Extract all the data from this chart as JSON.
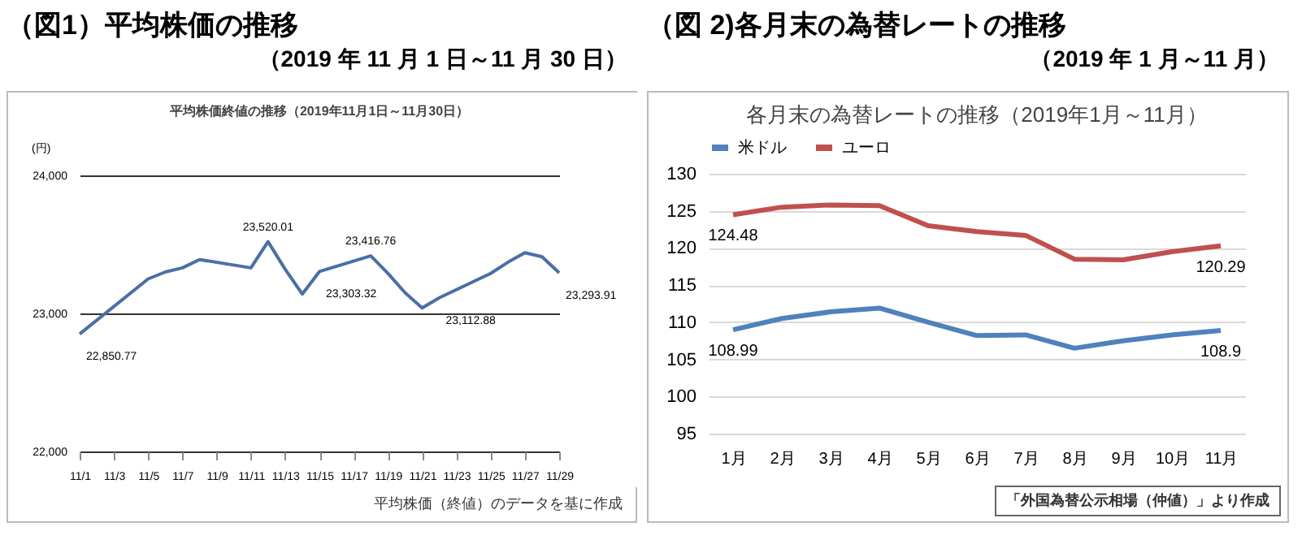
{
  "chart_data": [
    {
      "type": "line",
      "title": "（図1）平均株価の推移",
      "subtitle": "（2019 年 11 月 1 日～11 月 30 日）",
      "annotations": [
        "平均株価終値の推移（2019年11月1日～11月30日）",
        "平均株価（終値）のデータを基に作成"
      ],
      "ylabel": "(円)",
      "x": [
        "2019-11-01",
        "2019-11-05",
        "2019-11-06",
        "2019-11-07",
        "2019-11-08",
        "2019-11-11",
        "2019-11-12",
        "2019-11-13",
        "2019-11-14",
        "2019-11-15",
        "2019-11-18",
        "2019-11-19",
        "2019-11-20",
        "2019-11-21",
        "2019-11-22",
        "2019-11-25",
        "2019-11-26",
        "2019-11-27",
        "2019-11-28",
        "2019-11-29"
      ],
      "series": [
        {
          "color": "#4a6fa5",
          "values": [
            22850.77,
            23250,
            23300,
            23330,
            23390,
            23330,
            23520.01,
            23320,
            23140,
            23303.32,
            23416.76,
            23290,
            23150,
            23040,
            23112.88,
            23290,
            23370,
            23440,
            23410,
            23293.91
          ],
          "value_labels": [
            "22,850.77",
            null,
            null,
            null,
            null,
            null,
            "23,520.01",
            null,
            null,
            "23,303.32",
            "23,416.76",
            null,
            null,
            null,
            "23,112.88",
            null,
            null,
            null,
            null,
            "23,293.91"
          ]
        }
      ],
      "xlim": [
        "2019-11-01",
        "2019-11-29"
      ],
      "xticks": [
        {
          "value": "2019-11-01",
          "label": "11/1"
        },
        {
          "value": "2019-11-03",
          "label": "11/3"
        },
        {
          "value": "2019-11-05",
          "label": "11/5"
        },
        {
          "value": "2019-11-07",
          "label": "11/7"
        },
        {
          "value": "2019-11-09",
          "label": "11/9"
        },
        {
          "value": "2019-11-11",
          "label": "11/11"
        },
        {
          "value": "2019-11-13",
          "label": "11/13"
        },
        {
          "value": "2019-11-15",
          "label": "11/15"
        },
        {
          "value": "2019-11-17",
          "label": "11/17"
        },
        {
          "value": "2019-11-19",
          "label": "11/19"
        },
        {
          "value": "2019-11-21",
          "label": "11/21"
        },
        {
          "value": "2019-11-23",
          "label": "11/23"
        },
        {
          "value": "2019-11-25",
          "label": "11/25"
        },
        {
          "value": "2019-11-27",
          "label": "11/27"
        },
        {
          "value": "2019-11-29",
          "label": "11/29"
        }
      ],
      "ylim": [
        22000,
        24000
      ],
      "yticks": [
        {
          "value": 22000,
          "label": "22,000"
        },
        {
          "value": 23000,
          "label": "23,000"
        },
        {
          "value": 24000,
          "label": "24,000"
        }
      ],
      "grid": "y",
      "line_style": "solid"
    },
    {
      "type": "line",
      "title": "（図 2)各月末の為替レートの推移",
      "subtitle": "（2019 年 1 月～11 月）",
      "annotations": [
        "各月末の為替レートの推移（2019年1月～11月）",
        "「外国為替公示相場（仲値）」より作成"
      ],
      "categories": [
        "1月",
        "2月",
        "3月",
        "4月",
        "5月",
        "6月",
        "7月",
        "8月",
        "9月",
        "10月",
        "11月"
      ],
      "series": [
        {
          "name": "米ドル",
          "color": "#4f81bd",
          "values": [
            108.99,
            110.5,
            111.4,
            111.9,
            110.0,
            108.2,
            108.3,
            106.5,
            107.5,
            108.3,
            108.9
          ],
          "value_labels": [
            "108.99",
            null,
            null,
            null,
            null,
            null,
            null,
            null,
            null,
            null,
            "108.9"
          ]
        },
        {
          "name": "ユーロ",
          "color": "#c0504d",
          "values": [
            124.48,
            125.5,
            125.8,
            125.7,
            123.0,
            122.2,
            121.7,
            118.5,
            118.4,
            119.5,
            120.29
          ],
          "value_labels": [
            "124.48",
            null,
            null,
            null,
            null,
            null,
            null,
            null,
            null,
            null,
            "120.29"
          ]
        }
      ],
      "ylim": [
        95,
        130
      ],
      "yticks": [
        95,
        100,
        105,
        110,
        115,
        120,
        125,
        130
      ],
      "grid": "y",
      "legend": "top",
      "line_style": "solid"
    }
  ]
}
